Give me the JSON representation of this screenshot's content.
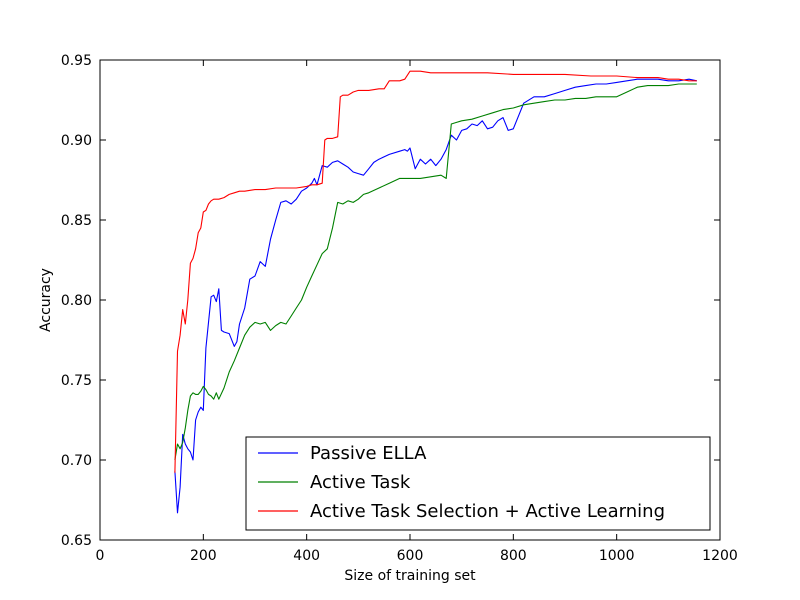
{
  "chart_data": {
    "type": "line",
    "title": "",
    "xlabel": "Size of training set",
    "ylabel": "Accuracy",
    "xlim": [
      0,
      1200
    ],
    "ylim": [
      0.65,
      0.95
    ],
    "xticks": [
      0,
      200,
      400,
      600,
      800,
      1000,
      1200
    ],
    "yticks": [
      0.65,
      0.7,
      0.75,
      0.8,
      0.85,
      0.9,
      0.95
    ],
    "xtick_labels": [
      "0",
      "200",
      "400",
      "600",
      "800",
      "1000",
      "1200"
    ],
    "ytick_labels": [
      "0.65",
      "0.70",
      "0.75",
      "0.80",
      "0.85",
      "0.90",
      "0.95"
    ],
    "grid": false,
    "legend_position": "lower-right",
    "series": [
      {
        "name": "Passive ELLA",
        "color": "#0000ff",
        "x": [
          145,
          150,
          155,
          160,
          165,
          170,
          175,
          180,
          185,
          190,
          195,
          200,
          205,
          210,
          215,
          220,
          225,
          230,
          235,
          240,
          250,
          260,
          265,
          270,
          280,
          290,
          300,
          310,
          320,
          330,
          340,
          350,
          360,
          370,
          380,
          390,
          400,
          410,
          415,
          420,
          430,
          440,
          450,
          460,
          470,
          480,
          490,
          500,
          510,
          520,
          530,
          540,
          560,
          580,
          590,
          595,
          600,
          610,
          620,
          630,
          640,
          650,
          660,
          670,
          680,
          690,
          700,
          710,
          720,
          730,
          740,
          750,
          760,
          770,
          780,
          790,
          800,
          820,
          840,
          860,
          880,
          900,
          920,
          940,
          960,
          980,
          1000,
          1020,
          1040,
          1060,
          1080,
          1100,
          1120,
          1140,
          1155
        ],
        "values": [
          0.693,
          0.667,
          0.683,
          0.716,
          0.71,
          0.707,
          0.705,
          0.7,
          0.725,
          0.73,
          0.733,
          0.731,
          0.77,
          0.786,
          0.802,
          0.803,
          0.799,
          0.807,
          0.781,
          0.78,
          0.779,
          0.771,
          0.774,
          0.785,
          0.795,
          0.813,
          0.815,
          0.824,
          0.821,
          0.838,
          0.85,
          0.861,
          0.862,
          0.86,
          0.863,
          0.868,
          0.87,
          0.873,
          0.876,
          0.872,
          0.884,
          0.883,
          0.886,
          0.887,
          0.885,
          0.883,
          0.88,
          0.879,
          0.878,
          0.882,
          0.886,
          0.888,
          0.891,
          0.893,
          0.894,
          0.893,
          0.895,
          0.882,
          0.888,
          0.885,
          0.888,
          0.884,
          0.888,
          0.894,
          0.903,
          0.9,
          0.906,
          0.907,
          0.91,
          0.909,
          0.912,
          0.907,
          0.908,
          0.912,
          0.914,
          0.906,
          0.907,
          0.923,
          0.927,
          0.927,
          0.929,
          0.931,
          0.933,
          0.934,
          0.935,
          0.935,
          0.936,
          0.937,
          0.938,
          0.938,
          0.938,
          0.937,
          0.937,
          0.938,
          0.937
        ]
      },
      {
        "name": "Active Task",
        "color": "#008000",
        "x": [
          145,
          150,
          155,
          160,
          165,
          170,
          175,
          180,
          185,
          190,
          195,
          200,
          205,
          210,
          215,
          220,
          225,
          230,
          240,
          250,
          260,
          270,
          280,
          290,
          300,
          310,
          320,
          330,
          340,
          350,
          360,
          370,
          380,
          390,
          400,
          410,
          420,
          430,
          440,
          450,
          460,
          470,
          480,
          490,
          500,
          510,
          520,
          540,
          560,
          580,
          600,
          620,
          640,
          660,
          670,
          680,
          690,
          700,
          720,
          740,
          760,
          780,
          800,
          820,
          840,
          860,
          880,
          900,
          920,
          940,
          960,
          980,
          1000,
          1020,
          1040,
          1060,
          1080,
          1100,
          1120,
          1140,
          1155
        ],
        "values": [
          0.7,
          0.71,
          0.707,
          0.711,
          0.72,
          0.731,
          0.74,
          0.742,
          0.741,
          0.741,
          0.743,
          0.746,
          0.744,
          0.741,
          0.74,
          0.738,
          0.742,
          0.738,
          0.745,
          0.755,
          0.762,
          0.77,
          0.778,
          0.783,
          0.786,
          0.785,
          0.786,
          0.781,
          0.784,
          0.786,
          0.785,
          0.79,
          0.795,
          0.8,
          0.808,
          0.815,
          0.822,
          0.829,
          0.832,
          0.845,
          0.861,
          0.86,
          0.862,
          0.861,
          0.863,
          0.866,
          0.867,
          0.87,
          0.873,
          0.876,
          0.876,
          0.876,
          0.877,
          0.878,
          0.876,
          0.91,
          0.911,
          0.912,
          0.913,
          0.915,
          0.917,
          0.919,
          0.92,
          0.922,
          0.923,
          0.924,
          0.925,
          0.925,
          0.926,
          0.926,
          0.927,
          0.927,
          0.927,
          0.93,
          0.933,
          0.934,
          0.934,
          0.934,
          0.935,
          0.935,
          0.935
        ]
      },
      {
        "name": "Active Task Selection + Active Learning",
        "color": "#ff0000",
        "x": [
          145,
          150,
          155,
          160,
          165,
          170,
          175,
          180,
          185,
          190,
          195,
          200,
          205,
          210,
          215,
          220,
          230,
          240,
          250,
          260,
          270,
          280,
          300,
          320,
          340,
          360,
          380,
          400,
          410,
          420,
          430,
          435,
          440,
          450,
          460,
          465,
          470,
          480,
          490,
          500,
          520,
          540,
          550,
          560,
          580,
          590,
          600,
          620,
          640,
          660,
          700,
          750,
          800,
          850,
          900,
          950,
          1000,
          1040,
          1080,
          1100,
          1120,
          1140,
          1155
        ],
        "values": [
          0.692,
          0.768,
          0.778,
          0.794,
          0.785,
          0.8,
          0.823,
          0.826,
          0.832,
          0.842,
          0.845,
          0.855,
          0.856,
          0.86,
          0.862,
          0.863,
          0.863,
          0.864,
          0.866,
          0.867,
          0.868,
          0.868,
          0.869,
          0.869,
          0.87,
          0.87,
          0.87,
          0.871,
          0.872,
          0.872,
          0.873,
          0.9,
          0.901,
          0.901,
          0.902,
          0.927,
          0.928,
          0.928,
          0.93,
          0.931,
          0.931,
          0.932,
          0.932,
          0.937,
          0.937,
          0.938,
          0.943,
          0.943,
          0.942,
          0.942,
          0.942,
          0.942,
          0.941,
          0.941,
          0.941,
          0.94,
          0.94,
          0.939,
          0.939,
          0.938,
          0.938,
          0.937,
          0.937
        ]
      }
    ]
  }
}
